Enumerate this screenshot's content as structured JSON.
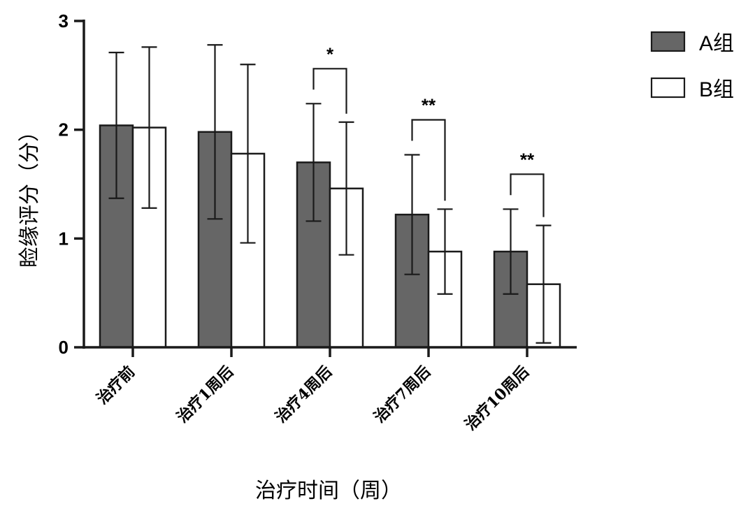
{
  "chart_data": {
    "type": "bar",
    "title": "",
    "xlabel": "治疗时间（周）",
    "ylabel": "睑缘评分（分）",
    "ylim": [
      0,
      3
    ],
    "yticks": [
      0,
      1,
      2,
      3
    ],
    "grid": false,
    "legend_position": "top-right",
    "categories": [
      "治疗前",
      "治疗1周后",
      "治疗4周后",
      "治疗7周后",
      "治疗10周后"
    ],
    "series": [
      {
        "name": "A组",
        "color": "#666666",
        "values": [
          2.04,
          1.98,
          1.7,
          1.22,
          0.88
        ],
        "error_low": [
          1.37,
          1.18,
          1.16,
          0.67,
          0.49
        ],
        "error_high": [
          2.71,
          2.78,
          2.24,
          1.77,
          1.27
        ]
      },
      {
        "name": "B组",
        "color": "#ffffff",
        "values": [
          2.02,
          1.78,
          1.46,
          0.88,
          0.58
        ],
        "error_low": [
          1.28,
          0.96,
          0.85,
          0.49,
          0.04
        ],
        "error_high": [
          2.76,
          2.6,
          2.07,
          1.27,
          1.12
        ]
      }
    ],
    "annotations": [
      {
        "category_index": 2,
        "label": "*"
      },
      {
        "category_index": 3,
        "label": "**"
      },
      {
        "category_index": 4,
        "label": "**"
      }
    ]
  }
}
